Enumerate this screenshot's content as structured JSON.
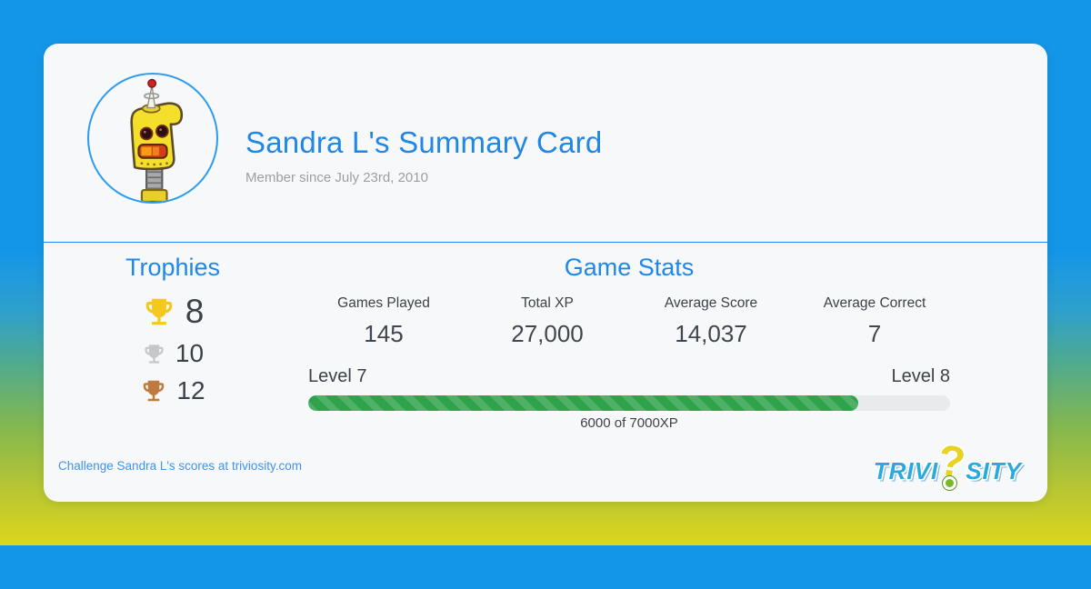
{
  "card": {
    "title": "Sandra L's Summary Card",
    "member_since": "Member since July 23rd, 2010"
  },
  "trophies": {
    "heading": "Trophies",
    "items": [
      {
        "tier": "gold",
        "icon": "gold-trophy-icon",
        "count": "8"
      },
      {
        "tier": "silver",
        "icon": "silver-trophy-icon",
        "count": "10"
      },
      {
        "tier": "bronze",
        "icon": "bronze-trophy-icon",
        "count": "12"
      }
    ]
  },
  "game_stats": {
    "heading": "Game Stats",
    "stats": [
      {
        "label": "Games Played",
        "value": "145"
      },
      {
        "label": "Total XP",
        "value": "27,000"
      },
      {
        "label": "Average Score",
        "value": "14,037"
      },
      {
        "label": "Average Correct",
        "value": "7"
      }
    ],
    "level": {
      "current": "Level 7",
      "next": "Level 8",
      "progress_text": "6000 of 7000XP",
      "progress_percent": 85.7
    }
  },
  "footer": {
    "challenge_link": "Challenge Sandra L's scores at triviosity.com",
    "logo": {
      "part1": "TRIVI",
      "question_mark": "?",
      "part2": "SITY"
    }
  },
  "colors": {
    "accent_blue": "#1e87e8",
    "background_top": "#1496e8",
    "background_bottom": "#dcd61d",
    "progress_green": "#2ea34b",
    "progress_green_light": "#4fb168",
    "progress_track": "#e9eaec",
    "trophy_gold": "#f6c71d",
    "trophy_silver": "#c5c7c9",
    "trophy_bronze": "#bf7b3d",
    "logo_blue": "#2aa9e0",
    "logo_yellow": "#e8d323",
    "logo_green": "#76b82a"
  }
}
